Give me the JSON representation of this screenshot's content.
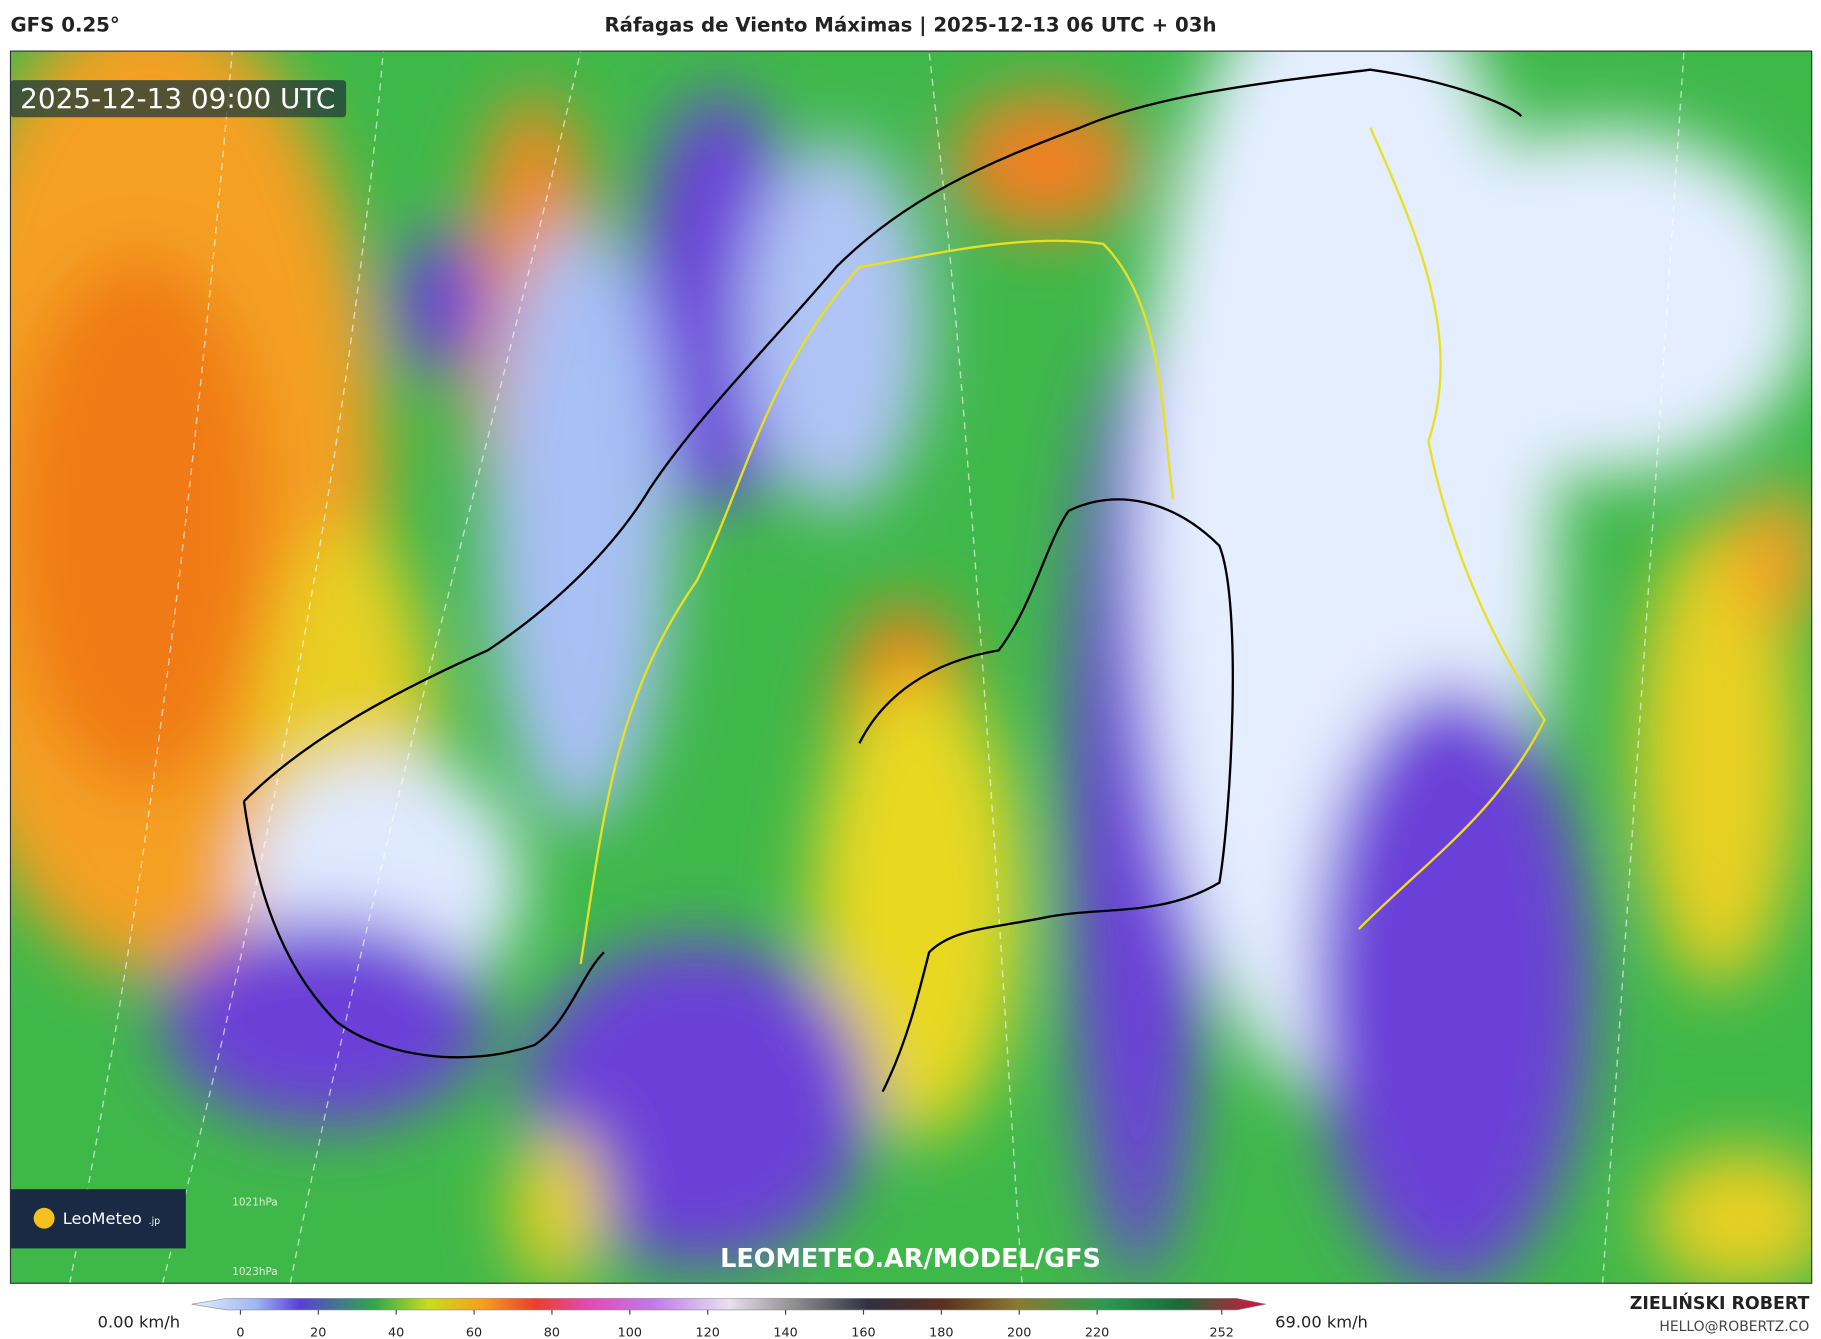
{
  "header": {
    "model": "GFS 0.25°",
    "title": "Ráfagas de Viento Máximas | 2025-12-13 06 UTC + 03h"
  },
  "map": {
    "timestamp": "2025-12-13 09:00 UTC",
    "watermark": "LEOMETEO.AR/MODEL/GFS",
    "logo": "LeoMeteo",
    "logo_suffix": ".jp",
    "isobars": [
      "1021hPa",
      "1023hPa"
    ]
  },
  "colorbar": {
    "min_label": "0.00 km/h",
    "max_label": "69.00 km/h",
    "ticks": [
      0,
      20,
      40,
      60,
      80,
      100,
      120,
      140,
      160,
      180,
      200,
      220,
      252
    ]
  },
  "footer": {
    "author": "ZIELIŃSKI ROBERT",
    "email": "HELLO@ROBERTZ.CO"
  }
}
